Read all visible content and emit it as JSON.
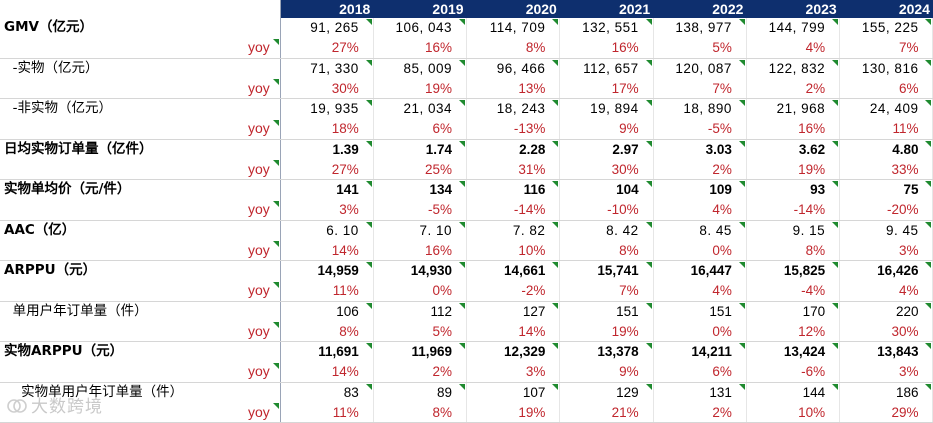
{
  "years": [
    "2018",
    "2019",
    "2020",
    "2021",
    "2022",
    "2023",
    "2024"
  ],
  "yoy_label": "yoy",
  "rows": [
    {
      "label": "GMV（亿元）",
      "style": "bold",
      "values": [
        "91, 265",
        "106, 043",
        "114, 709",
        "132, 551",
        "138, 977",
        "144, 799",
        "155, 225"
      ],
      "yoy": [
        "27%",
        "16%",
        "8%",
        "16%",
        "5%",
        "4%",
        "7%"
      ]
    },
    {
      "label": "  -实物（亿元）",
      "style": "sub",
      "values": [
        "71, 330",
        "85, 009",
        "96, 466",
        "112, 657",
        "120, 087",
        "122, 832",
        "130, 816"
      ],
      "yoy": [
        "30%",
        "19%",
        "13%",
        "17%",
        "7%",
        "2%",
        "6%"
      ]
    },
    {
      "label": "  -非实物（亿元）",
      "style": "sub",
      "values": [
        "19, 935",
        "21, 034",
        "18, 243",
        "19, 894",
        "18, 890",
        "21, 968",
        "24, 409"
      ],
      "yoy": [
        "18%",
        "6%",
        "-13%",
        "9%",
        "-5%",
        "16%",
        "11%"
      ]
    },
    {
      "label": "日均实物订单量（亿件）",
      "style": "bold",
      "values": [
        "1.39",
        "1.74",
        "2.28",
        "2.97",
        "3.03",
        "3.62",
        "4.80"
      ],
      "yoy": [
        "27%",
        "25%",
        "31%",
        "30%",
        "2%",
        "19%",
        "33%"
      ]
    },
    {
      "label": "实物单均价（元/件）",
      "style": "bold",
      "values": [
        "141",
        "134",
        "116",
        "104",
        "109",
        "93",
        "75"
      ],
      "yoy": [
        "3%",
        "-5%",
        "-14%",
        "-10%",
        "4%",
        "-14%",
        "-20%"
      ]
    },
    {
      "label": "AAC（亿）",
      "style": "bold",
      "values": [
        "6. 10",
        "7. 10",
        "7. 82",
        "8. 42",
        "8. 45",
        "9. 15",
        "9. 45"
      ],
      "yoy": [
        "14%",
        "16%",
        "10%",
        "8%",
        "0%",
        "8%",
        "3%"
      ]
    },
    {
      "label": "ARPPU（元）",
      "style": "bold",
      "values": [
        "14,959",
        "14,930",
        "14,661",
        "15,741",
        "16,447",
        "15,825",
        "16,426"
      ],
      "yoy": [
        "11%",
        "0%",
        "-2%",
        "7%",
        "4%",
        "-4%",
        "4%"
      ]
    },
    {
      "label": "  单用户年订单量（件）",
      "style": "sub",
      "values": [
        "106",
        "112",
        "127",
        "151",
        "151",
        "170",
        "220"
      ],
      "yoy": [
        "8%",
        "5%",
        "14%",
        "19%",
        "0%",
        "12%",
        "30%"
      ]
    },
    {
      "label": "实物ARPPU（元）",
      "style": "bold",
      "values": [
        "11,691",
        "11,969",
        "12,329",
        "13,378",
        "14,211",
        "13,424",
        "13,843"
      ],
      "yoy": [
        "14%",
        "2%",
        "3%",
        "9%",
        "6%",
        "-6%",
        "3%"
      ]
    },
    {
      "label": "    实物单用户年订单量（件）",
      "style": "sub",
      "values": [
        "83",
        "89",
        "107",
        "129",
        "131",
        "144",
        "186"
      ],
      "yoy": [
        "11%",
        "8%",
        "19%",
        "21%",
        "2%",
        "10%",
        "29%"
      ]
    }
  ],
  "watermark": "大数跨境",
  "colors": {
    "header_bg": "#0e2f6e",
    "yoy_text": "#c0262d",
    "marker": "#1f8a2f"
  }
}
